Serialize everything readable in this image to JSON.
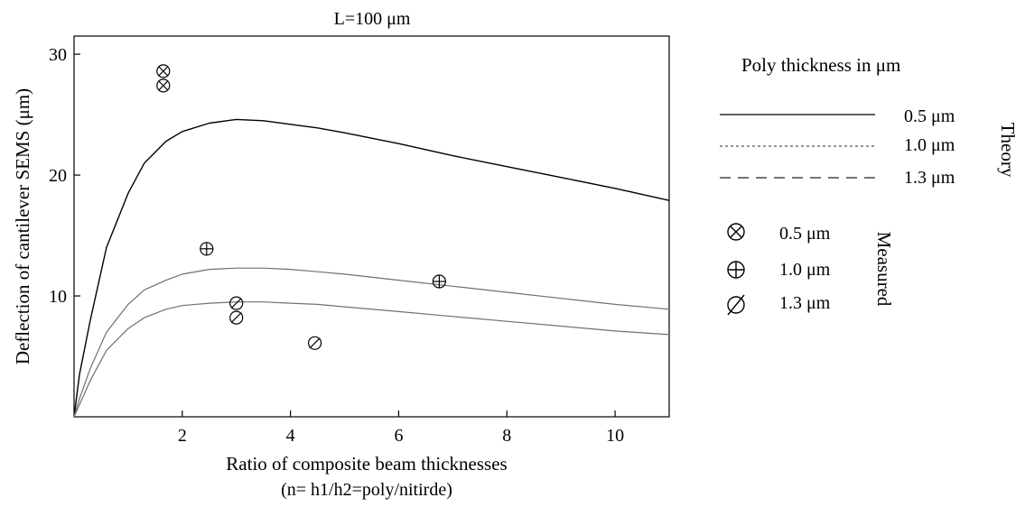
{
  "chart_data": {
    "type": "line",
    "title": "L=100 μm",
    "xlabel": "Ratio of composite beam thicknesses",
    "xlabel_sub": "(n= h1/h2=poly/nitirde)",
    "ylabel": "Deflection of cantilever SEMS (μm)",
    "xlim": [
      0,
      11
    ],
    "ylim": [
      0,
      31.5
    ],
    "xticks": [
      2,
      4,
      6,
      8,
      10
    ],
    "yticks": [
      10,
      20,
      30
    ],
    "grid": false,
    "series": [
      {
        "label": "0.5 μm",
        "color": "#000000",
        "x": [
          0,
          0.1,
          0.3,
          0.6,
          1.0,
          1.3,
          1.7,
          2.0,
          2.5,
          3.0,
          3.5,
          4.0,
          4.5,
          5.0,
          6.0,
          7.0,
          8.0,
          9.0,
          10.0,
          11.0
        ],
        "y": [
          0,
          3.5,
          8,
          14,
          18.5,
          21,
          22.8,
          23.6,
          24.3,
          24.6,
          24.5,
          24.2,
          23.9,
          23.5,
          22.6,
          21.6,
          20.7,
          19.8,
          18.9,
          17.9
        ]
      },
      {
        "label": "1.0 μm",
        "color": "#707070",
        "x": [
          0,
          0.1,
          0.3,
          0.6,
          1.0,
          1.3,
          1.7,
          2.0,
          2.5,
          3.0,
          3.5,
          4.0,
          4.5,
          5.0,
          6.0,
          7.0,
          8.0,
          9.0,
          10.0,
          11.0
        ],
        "y": [
          0,
          1.5,
          4,
          7,
          9.3,
          10.5,
          11.3,
          11.8,
          12.2,
          12.3,
          12.3,
          12.2,
          12.0,
          11.8,
          11.3,
          10.8,
          10.3,
          9.8,
          9.3,
          8.9
        ]
      },
      {
        "label": "1.3 μm",
        "color": "#707070",
        "x": [
          0,
          0.1,
          0.3,
          0.6,
          1.0,
          1.3,
          1.7,
          2.0,
          2.5,
          3.0,
          3.5,
          4.0,
          4.5,
          5.0,
          6.0,
          7.0,
          8.0,
          9.0,
          10.0,
          11.0
        ],
        "y": [
          0,
          1.0,
          3,
          5.5,
          7.3,
          8.2,
          8.9,
          9.2,
          9.4,
          9.5,
          9.5,
          9.4,
          9.3,
          9.1,
          8.7,
          8.3,
          7.9,
          7.5,
          7.1,
          6.8
        ]
      }
    ],
    "measured": [
      {
        "label": "0.5 μm",
        "symbol": "otimes",
        "points": [
          {
            "x": 1.65,
            "y": 28.6
          },
          {
            "x": 1.65,
            "y": 27.4
          }
        ]
      },
      {
        "label": "1.0 μm",
        "symbol": "oplus",
        "points": [
          {
            "x": 2.45,
            "y": 13.9
          },
          {
            "x": 6.75,
            "y": 11.2
          }
        ]
      },
      {
        "label": "1.3 μm",
        "symbol": "oslash",
        "points": [
          {
            "x": 3.0,
            "y": 9.4
          },
          {
            "x": 3.0,
            "y": 8.2
          },
          {
            "x": 4.45,
            "y": 6.1
          }
        ]
      }
    ],
    "legend": {
      "placement": "right",
      "heading": "Poly  thickness in  μm",
      "theory_label": "Theory",
      "measured_label": "Measured"
    }
  }
}
